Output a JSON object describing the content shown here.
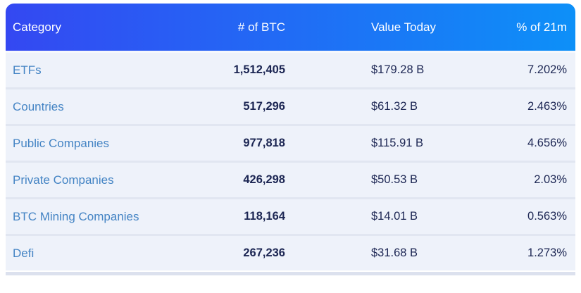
{
  "colors": {
    "header_gradient_start": "#3448f2",
    "header_gradient_end": "#0d90f8",
    "row_bg": "#eef2fa",
    "divider": "#e1e6f1",
    "strip": "#dce1ee",
    "category_text": "#4484c4",
    "number_text": "#1c2653"
  },
  "table": {
    "headers": {
      "category": "Category",
      "btc": "# of BTC",
      "value": "Value Today",
      "pct": "% of 21m"
    },
    "rows": [
      {
        "category": "ETFs",
        "btc": "1,512,405",
        "value": "$179.28 B",
        "pct": "7.202%"
      },
      {
        "category": "Countries",
        "btc": "517,296",
        "value": "$61.32 B",
        "pct": "2.463%"
      },
      {
        "category": "Public Companies",
        "btc": "977,818",
        "value": "$115.91 B",
        "pct": "4.656%"
      },
      {
        "category": "Private Companies",
        "btc": "426,298",
        "value": "$50.53 B",
        "pct": "2.03%"
      },
      {
        "category": "BTC Mining Companies",
        "btc": "118,164",
        "value": "$14.01 B",
        "pct": "0.563%"
      },
      {
        "category": "Defi",
        "btc": "267,236",
        "value": "$31.68 B",
        "pct": "1.273%"
      }
    ]
  }
}
